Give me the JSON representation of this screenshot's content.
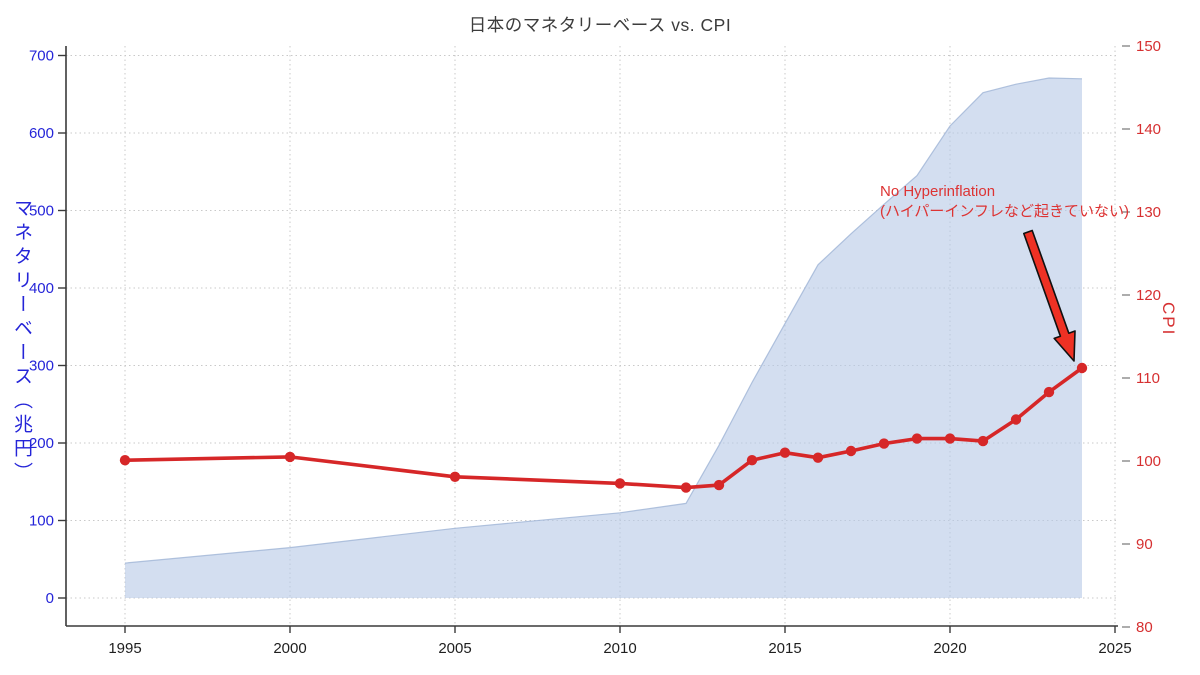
{
  "title": "日本のマネタリーベース vs. CPI",
  "axes": {
    "left": {
      "label": "マネタリーベース（兆円）",
      "color": "#2424d8",
      "ticks": [
        0,
        100,
        200,
        300,
        400,
        500,
        600,
        700
      ]
    },
    "right": {
      "label": "CPI",
      "color": "#d63031",
      "ticks": [
        80,
        90,
        100,
        110,
        120,
        130,
        140,
        150
      ]
    },
    "x": {
      "ticks": [
        1995,
        2000,
        2005,
        2010,
        2015,
        2020,
        2025
      ]
    }
  },
  "annotation": {
    "line1": "No Hyperinflation",
    "line2": "(ハイパーインフレなど起きていない)"
  },
  "colors": {
    "area_fill": "#b8c9e6",
    "area_edge": "#9fb4d6",
    "cpi_line": "#d62728",
    "left_axis_text": "#2424d8",
    "right_axis_text": "#d63031",
    "x_axis_text": "#1f1f1f",
    "grid": "#c9c9c9",
    "spine": "#3a3a3a",
    "annotation_text": "#dd3333",
    "arrow_fill": "#ee3124",
    "arrow_outline": "#111111"
  },
  "chart_data": {
    "type": "combo",
    "x": [
      1995,
      2000,
      2005,
      2010,
      2012,
      2013,
      2014,
      2015,
      2016,
      2017,
      2018,
      2019,
      2020,
      2021,
      2022,
      2023,
      2024
    ],
    "series": [
      {
        "name": "マネタリーベース（兆円）",
        "type": "area",
        "axis": "left",
        "values": [
          45,
          65,
          90,
          110,
          122,
          197,
          278,
          354,
          430,
          470,
          508,
          545,
          609,
          652,
          663,
          671,
          670
        ]
      },
      {
        "name": "CPI",
        "type": "line",
        "axis": "right",
        "values": [
          100.1,
          100.5,
          98.1,
          97.3,
          96.8,
          97.1,
          100.1,
          101.0,
          100.4,
          101.2,
          102.1,
          102.7,
          102.7,
          102.4,
          105.0,
          108.3,
          111.2
        ]
      }
    ],
    "title": "日本のマネタリーベース vs. CPI",
    "xlabel": "",
    "ylabel_left": "マネタリーベース（兆円）",
    "ylabel_right": "CPI",
    "ylim_left": [
      0,
      700
    ],
    "ylim_right": [
      80,
      150
    ],
    "xlim": [
      1993.2,
      2025.3
    ],
    "grid": "dotted"
  }
}
